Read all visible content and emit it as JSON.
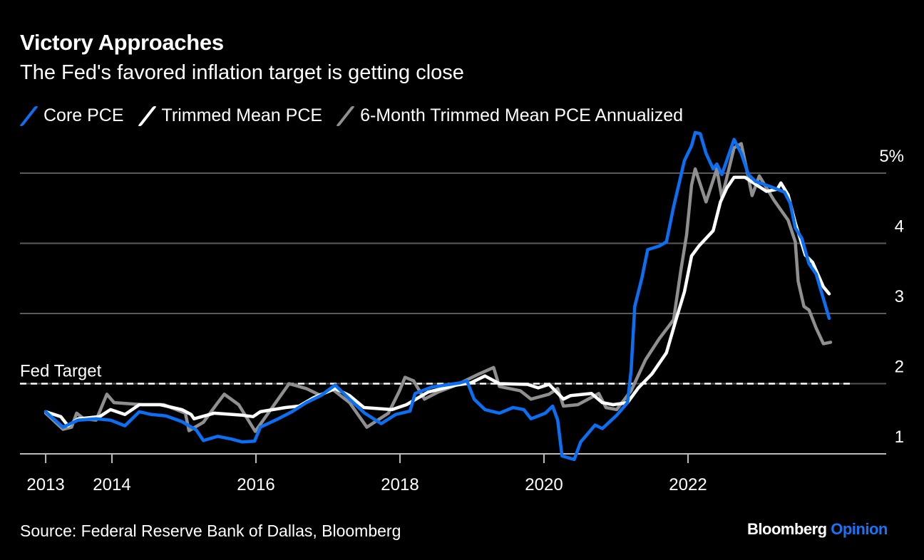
{
  "chart_data": {
    "type": "line",
    "title": "Victory Approaches",
    "subtitle": "The Fed's favored inflation target is getting close",
    "xlabel": "",
    "ylabel": "",
    "ylim": [
      0.9,
      5.65
    ],
    "xlim": [
      2013.08,
      2023.96
    ],
    "grid": true,
    "legend_position": "top-left",
    "y_ticks": [
      {
        "value": 1,
        "label": "1"
      },
      {
        "value": 2,
        "label": "2"
      },
      {
        "value": 3,
        "label": "3"
      },
      {
        "value": 4,
        "label": "4"
      },
      {
        "value": 5,
        "label": "5%"
      }
    ],
    "x_ticks": [
      {
        "value": 2013.08,
        "label": "2013"
      },
      {
        "value": 2014,
        "label": "2014"
      },
      {
        "value": 2016,
        "label": "2016"
      },
      {
        "value": 2018,
        "label": "2018"
      },
      {
        "value": 2020,
        "label": "2020"
      },
      {
        "value": 2022,
        "label": "2022"
      }
    ],
    "annotations": [
      {
        "label": "Fed Target",
        "value": 2
      }
    ],
    "series": [
      {
        "name": "Core PCE",
        "color": "#0a6ff2",
        "points": [
          [
            2013.08,
            1.6
          ],
          [
            2013.32,
            1.38
          ],
          [
            2013.53,
            1.48
          ],
          [
            2013.78,
            1.5
          ],
          [
            2013.98,
            1.48
          ],
          [
            2014.18,
            1.4
          ],
          [
            2014.38,
            1.6
          ],
          [
            2014.55,
            1.56
          ],
          [
            2014.75,
            1.54
          ],
          [
            2014.97,
            1.46
          ],
          [
            2015.17,
            1.34
          ],
          [
            2015.27,
            1.19
          ],
          [
            2015.47,
            1.25
          ],
          [
            2015.66,
            1.21
          ],
          [
            2015.81,
            1.17
          ],
          [
            2015.98,
            1.18
          ],
          [
            2016.06,
            1.38
          ],
          [
            2016.31,
            1.5
          ],
          [
            2016.5,
            1.6
          ],
          [
            2016.7,
            1.73
          ],
          [
            2016.9,
            1.83
          ],
          [
            2017.1,
            1.98
          ],
          [
            2017.3,
            1.78
          ],
          [
            2017.51,
            1.58
          ],
          [
            2017.74,
            1.43
          ],
          [
            2017.94,
            1.56
          ],
          [
            2018.14,
            1.61
          ],
          [
            2018.21,
            1.86
          ],
          [
            2018.44,
            1.95
          ],
          [
            2018.63,
            1.98
          ],
          [
            2018.83,
            2.01
          ],
          [
            2018.93,
            2.04
          ],
          [
            2019.03,
            1.78
          ],
          [
            2019.18,
            1.63
          ],
          [
            2019.38,
            1.58
          ],
          [
            2019.57,
            1.66
          ],
          [
            2019.72,
            1.63
          ],
          [
            2019.82,
            1.5
          ],
          [
            2020.02,
            1.58
          ],
          [
            2020.12,
            1.68
          ],
          [
            2020.19,
            1.48
          ],
          [
            2020.25,
            0.97
          ],
          [
            2020.42,
            0.92
          ],
          [
            2020.51,
            1.17
          ],
          [
            2020.71,
            1.41
          ],
          [
            2020.81,
            1.36
          ],
          [
            2021.01,
            1.55
          ],
          [
            2021.16,
            1.73
          ],
          [
            2021.21,
            2.19
          ],
          [
            2021.26,
            3.1
          ],
          [
            2021.36,
            3.51
          ],
          [
            2021.44,
            3.91
          ],
          [
            2021.6,
            3.96
          ],
          [
            2021.7,
            4.02
          ],
          [
            2021.8,
            4.52
          ],
          [
            2021.95,
            5.18
          ],
          [
            2022.05,
            5.39
          ],
          [
            2022.1,
            5.58
          ],
          [
            2022.17,
            5.56
          ],
          [
            2022.25,
            5.28
          ],
          [
            2022.35,
            5.06
          ],
          [
            2022.4,
            5.13
          ],
          [
            2022.47,
            4.98
          ],
          [
            2022.64,
            5.48
          ],
          [
            2022.74,
            5.28
          ],
          [
            2022.84,
            4.98
          ],
          [
            2022.94,
            4.88
          ],
          [
            2023.14,
            4.81
          ],
          [
            2023.34,
            4.73
          ],
          [
            2023.42,
            4.57
          ],
          [
            2023.49,
            4.22
          ],
          [
            2023.58,
            4.07
          ],
          [
            2023.68,
            3.71
          ],
          [
            2023.78,
            3.56
          ],
          [
            2023.96,
            2.93
          ]
        ]
      },
      {
        "name": "Trimmed Mean PCE",
        "color": "#ffffff",
        "points": [
          [
            2013.08,
            1.6
          ],
          [
            2013.29,
            1.53
          ],
          [
            2013.39,
            1.4
          ],
          [
            2013.53,
            1.5
          ],
          [
            2013.83,
            1.53
          ],
          [
            2013.98,
            1.63
          ],
          [
            2014.18,
            1.56
          ],
          [
            2014.38,
            1.7
          ],
          [
            2014.67,
            1.7
          ],
          [
            2014.97,
            1.63
          ],
          [
            2015.1,
            1.56
          ],
          [
            2015.14,
            1.5
          ],
          [
            2015.42,
            1.58
          ],
          [
            2015.81,
            1.55
          ],
          [
            2015.96,
            1.53
          ],
          [
            2016.06,
            1.6
          ],
          [
            2016.41,
            1.66
          ],
          [
            2016.6,
            1.68
          ],
          [
            2016.8,
            1.8
          ],
          [
            2017.1,
            1.93
          ],
          [
            2017.3,
            1.83
          ],
          [
            2017.5,
            1.66
          ],
          [
            2017.89,
            1.63
          ],
          [
            2018.09,
            1.7
          ],
          [
            2018.39,
            1.88
          ],
          [
            2018.78,
            1.98
          ],
          [
            2018.98,
            2.01
          ],
          [
            2019.18,
            2.11
          ],
          [
            2019.38,
            2.0
          ],
          [
            2019.77,
            1.99
          ],
          [
            2019.92,
            1.94
          ],
          [
            2020.07,
            1.99
          ],
          [
            2020.27,
            1.78
          ],
          [
            2020.37,
            1.83
          ],
          [
            2020.66,
            1.86
          ],
          [
            2020.81,
            1.73
          ],
          [
            2020.96,
            1.7
          ],
          [
            2021.16,
            1.73
          ],
          [
            2021.31,
            1.94
          ],
          [
            2021.5,
            2.14
          ],
          [
            2021.7,
            2.44
          ],
          [
            2021.83,
            2.9
          ],
          [
            2021.95,
            3.31
          ],
          [
            2022.05,
            3.82
          ],
          [
            2022.15,
            3.96
          ],
          [
            2022.35,
            4.18
          ],
          [
            2022.45,
            4.59
          ],
          [
            2022.54,
            4.79
          ],
          [
            2022.64,
            4.94
          ],
          [
            2022.79,
            4.94
          ],
          [
            2022.94,
            4.84
          ],
          [
            2023.09,
            4.74
          ],
          [
            2023.24,
            4.77
          ],
          [
            2023.29,
            4.86
          ],
          [
            2023.39,
            4.69
          ],
          [
            2023.49,
            4.29
          ],
          [
            2023.63,
            3.83
          ],
          [
            2023.73,
            3.73
          ],
          [
            2023.88,
            3.38
          ],
          [
            2023.96,
            3.28
          ]
        ]
      },
      {
        "name": "6-Month Trimmed Mean PCE Annualized",
        "color": "#8f8f8f",
        "points": [
          [
            2013.08,
            1.58
          ],
          [
            2013.32,
            1.35
          ],
          [
            2013.44,
            1.38
          ],
          [
            2013.51,
            1.58
          ],
          [
            2013.61,
            1.5
          ],
          [
            2013.78,
            1.48
          ],
          [
            2013.93,
            1.85
          ],
          [
            2014.03,
            1.73
          ],
          [
            2014.43,
            1.7
          ],
          [
            2014.72,
            1.7
          ],
          [
            2015.02,
            1.58
          ],
          [
            2015.07,
            1.33
          ],
          [
            2015.27,
            1.45
          ],
          [
            2015.47,
            1.73
          ],
          [
            2015.56,
            1.85
          ],
          [
            2015.76,
            1.7
          ],
          [
            2015.99,
            1.32
          ],
          [
            2016.26,
            1.71
          ],
          [
            2016.46,
            2.0
          ],
          [
            2016.7,
            1.93
          ],
          [
            2016.9,
            1.83
          ],
          [
            2017.05,
            1.93
          ],
          [
            2017.3,
            1.73
          ],
          [
            2017.54,
            1.38
          ],
          [
            2017.84,
            1.58
          ],
          [
            2017.99,
            1.89
          ],
          [
            2018.07,
            2.09
          ],
          [
            2018.19,
            2.04
          ],
          [
            2018.34,
            1.78
          ],
          [
            2018.53,
            1.88
          ],
          [
            2018.78,
            1.98
          ],
          [
            2019.08,
            2.13
          ],
          [
            2019.3,
            2.23
          ],
          [
            2019.38,
            1.96
          ],
          [
            2019.67,
            1.9
          ],
          [
            2019.82,
            1.78
          ],
          [
            2020.07,
            1.85
          ],
          [
            2020.19,
            1.93
          ],
          [
            2020.27,
            1.68
          ],
          [
            2020.47,
            1.7
          ],
          [
            2020.76,
            1.86
          ],
          [
            2020.86,
            1.66
          ],
          [
            2021.01,
            1.63
          ],
          [
            2021.21,
            1.9
          ],
          [
            2021.41,
            2.34
          ],
          [
            2021.6,
            2.64
          ],
          [
            2021.8,
            2.91
          ],
          [
            2021.9,
            3.61
          ],
          [
            2021.98,
            4.12
          ],
          [
            2022.05,
            4.83
          ],
          [
            2022.1,
            5.06
          ],
          [
            2022.25,
            4.59
          ],
          [
            2022.4,
            5.06
          ],
          [
            2022.47,
            4.65
          ],
          [
            2022.64,
            5.36
          ],
          [
            2022.74,
            5.42
          ],
          [
            2022.89,
            4.68
          ],
          [
            2022.99,
            4.96
          ],
          [
            2023.19,
            4.62
          ],
          [
            2023.39,
            4.33
          ],
          [
            2023.49,
            4.02
          ],
          [
            2023.53,
            3.46
          ],
          [
            2023.61,
            3.1
          ],
          [
            2023.68,
            3.05
          ],
          [
            2023.78,
            2.79
          ],
          [
            2023.88,
            2.57
          ],
          [
            2023.98,
            2.59
          ]
        ]
      }
    ]
  },
  "footer": {
    "source": "Source: Federal Reserve Bank of Dallas, Bloomberg",
    "brand": "Bloomberg",
    "brand_accent": "Opinion"
  }
}
